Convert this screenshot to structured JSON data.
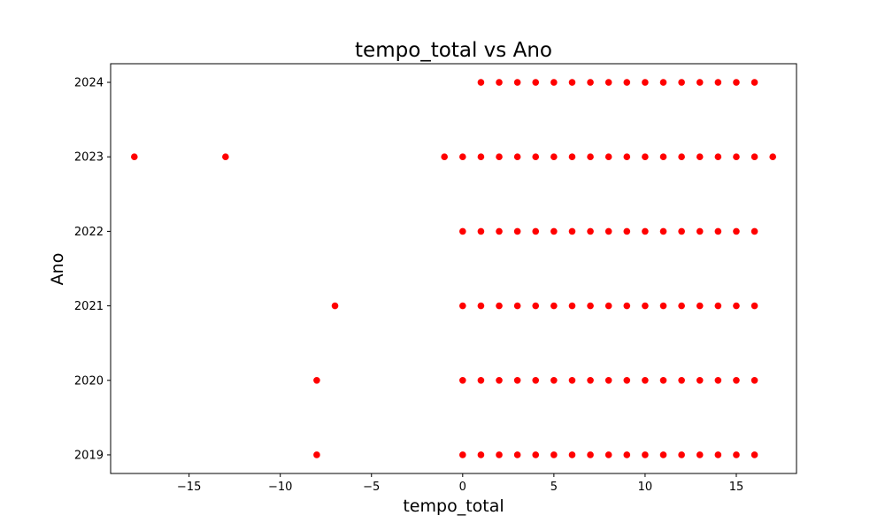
{
  "chart_data": {
    "type": "scatter",
    "title": "tempo_total vs Ano",
    "xlabel": "tempo_total",
    "ylabel": "Ano",
    "xlim": [
      -19.3,
      18.3
    ],
    "ylim": [
      2018.75,
      2024.25
    ],
    "x_ticks": [
      -15,
      -10,
      -5,
      0,
      5,
      10,
      15
    ],
    "x_tick_labels": [
      "−15",
      "−10",
      "−5",
      "0",
      "5",
      "10",
      "15"
    ],
    "y_ticks": [
      2019,
      2020,
      2021,
      2022,
      2023,
      2024
    ],
    "y_tick_labels": [
      "2019",
      "2020",
      "2021",
      "2022",
      "2023",
      "2024"
    ],
    "grid": false,
    "marker_color": "#ff0000",
    "series": [
      {
        "points": [
          {
            "x": -8,
            "y": 2019
          },
          {
            "x": 0,
            "y": 2019
          },
          {
            "x": 1,
            "y": 2019
          },
          {
            "x": 2,
            "y": 2019
          },
          {
            "x": 3,
            "y": 2019
          },
          {
            "x": 4,
            "y": 2019
          },
          {
            "x": 5,
            "y": 2019
          },
          {
            "x": 6,
            "y": 2019
          },
          {
            "x": 7,
            "y": 2019
          },
          {
            "x": 8,
            "y": 2019
          },
          {
            "x": 9,
            "y": 2019
          },
          {
            "x": 10,
            "y": 2019
          },
          {
            "x": 11,
            "y": 2019
          },
          {
            "x": 12,
            "y": 2019
          },
          {
            "x": 13,
            "y": 2019
          },
          {
            "x": 14,
            "y": 2019
          },
          {
            "x": 15,
            "y": 2019
          },
          {
            "x": 16,
            "y": 2019
          },
          {
            "x": -8,
            "y": 2020
          },
          {
            "x": 0,
            "y": 2020
          },
          {
            "x": 1,
            "y": 2020
          },
          {
            "x": 2,
            "y": 2020
          },
          {
            "x": 3,
            "y": 2020
          },
          {
            "x": 4,
            "y": 2020
          },
          {
            "x": 5,
            "y": 2020
          },
          {
            "x": 6,
            "y": 2020
          },
          {
            "x": 7,
            "y": 2020
          },
          {
            "x": 8,
            "y": 2020
          },
          {
            "x": 9,
            "y": 2020
          },
          {
            "x": 10,
            "y": 2020
          },
          {
            "x": 11,
            "y": 2020
          },
          {
            "x": 12,
            "y": 2020
          },
          {
            "x": 13,
            "y": 2020
          },
          {
            "x": 14,
            "y": 2020
          },
          {
            "x": 15,
            "y": 2020
          },
          {
            "x": 16,
            "y": 2020
          },
          {
            "x": -7,
            "y": 2021
          },
          {
            "x": 0,
            "y": 2021
          },
          {
            "x": 1,
            "y": 2021
          },
          {
            "x": 2,
            "y": 2021
          },
          {
            "x": 3,
            "y": 2021
          },
          {
            "x": 4,
            "y": 2021
          },
          {
            "x": 5,
            "y": 2021
          },
          {
            "x": 6,
            "y": 2021
          },
          {
            "x": 7,
            "y": 2021
          },
          {
            "x": 8,
            "y": 2021
          },
          {
            "x": 9,
            "y": 2021
          },
          {
            "x": 10,
            "y": 2021
          },
          {
            "x": 11,
            "y": 2021
          },
          {
            "x": 12,
            "y": 2021
          },
          {
            "x": 13,
            "y": 2021
          },
          {
            "x": 14,
            "y": 2021
          },
          {
            "x": 15,
            "y": 2021
          },
          {
            "x": 16,
            "y": 2021
          },
          {
            "x": 0,
            "y": 2022
          },
          {
            "x": 1,
            "y": 2022
          },
          {
            "x": 2,
            "y": 2022
          },
          {
            "x": 3,
            "y": 2022
          },
          {
            "x": 4,
            "y": 2022
          },
          {
            "x": 5,
            "y": 2022
          },
          {
            "x": 6,
            "y": 2022
          },
          {
            "x": 7,
            "y": 2022
          },
          {
            "x": 8,
            "y": 2022
          },
          {
            "x": 9,
            "y": 2022
          },
          {
            "x": 10,
            "y": 2022
          },
          {
            "x": 11,
            "y": 2022
          },
          {
            "x": 12,
            "y": 2022
          },
          {
            "x": 13,
            "y": 2022
          },
          {
            "x": 14,
            "y": 2022
          },
          {
            "x": 15,
            "y": 2022
          },
          {
            "x": 16,
            "y": 2022
          },
          {
            "x": -18,
            "y": 2023
          },
          {
            "x": -13,
            "y": 2023
          },
          {
            "x": -1,
            "y": 2023
          },
          {
            "x": 0,
            "y": 2023
          },
          {
            "x": 1,
            "y": 2023
          },
          {
            "x": 2,
            "y": 2023
          },
          {
            "x": 3,
            "y": 2023
          },
          {
            "x": 4,
            "y": 2023
          },
          {
            "x": 5,
            "y": 2023
          },
          {
            "x": 6,
            "y": 2023
          },
          {
            "x": 7,
            "y": 2023
          },
          {
            "x": 8,
            "y": 2023
          },
          {
            "x": 9,
            "y": 2023
          },
          {
            "x": 10,
            "y": 2023
          },
          {
            "x": 11,
            "y": 2023
          },
          {
            "x": 12,
            "y": 2023
          },
          {
            "x": 13,
            "y": 2023
          },
          {
            "x": 14,
            "y": 2023
          },
          {
            "x": 15,
            "y": 2023
          },
          {
            "x": 16,
            "y": 2023
          },
          {
            "x": 17,
            "y": 2023
          },
          {
            "x": 1,
            "y": 2024
          },
          {
            "x": 2,
            "y": 2024
          },
          {
            "x": 3,
            "y": 2024
          },
          {
            "x": 4,
            "y": 2024
          },
          {
            "x": 5,
            "y": 2024
          },
          {
            "x": 6,
            "y": 2024
          },
          {
            "x": 7,
            "y": 2024
          },
          {
            "x": 8,
            "y": 2024
          },
          {
            "x": 9,
            "y": 2024
          },
          {
            "x": 10,
            "y": 2024
          },
          {
            "x": 11,
            "y": 2024
          },
          {
            "x": 12,
            "y": 2024
          },
          {
            "x": 13,
            "y": 2024
          },
          {
            "x": 14,
            "y": 2024
          },
          {
            "x": 15,
            "y": 2024
          },
          {
            "x": 16,
            "y": 2024
          }
        ]
      }
    ]
  }
}
